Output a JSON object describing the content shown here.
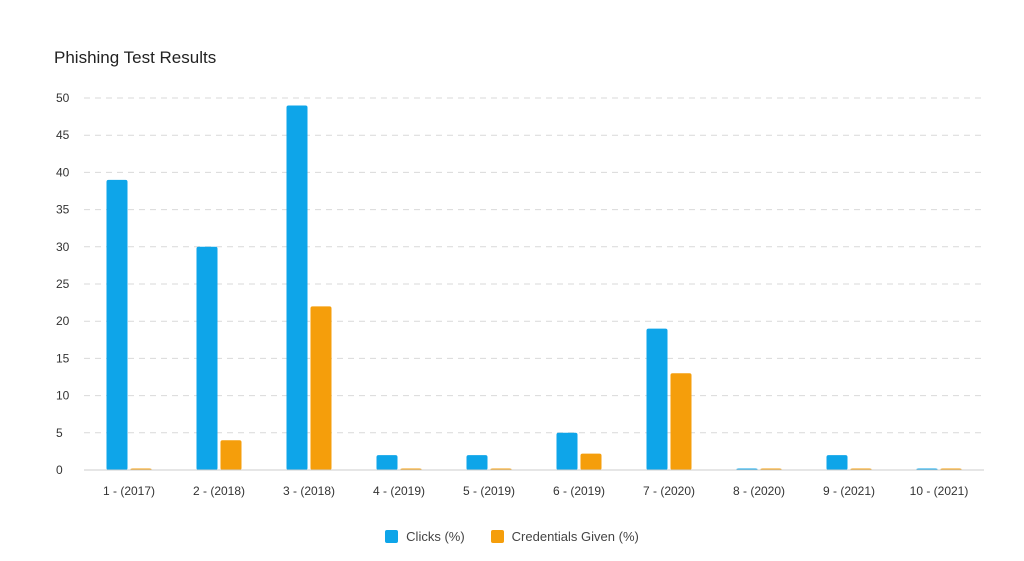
{
  "chart_data": {
    "type": "bar",
    "title": "Phishing Test Results",
    "xlabel": "",
    "ylabel": "",
    "categories": [
      "1 - (2017)",
      "2 - (2018)",
      "3 - (2018)",
      "4 - (2019)",
      "5 - (2019)",
      "6 - (2019)",
      "7 - (2020)",
      "8 - (2020)",
      "9 - (2021)",
      "10 - (2021)"
    ],
    "series": [
      {
        "name": "Clicks (%)",
        "color": "#0ea5e9",
        "values": [
          39,
          30,
          49,
          2,
          2,
          5,
          19,
          0,
          2,
          0
        ]
      },
      {
        "name": "Credentials Given (%)",
        "color": "#f59e0b",
        "values": [
          0,
          4,
          22,
          0,
          0,
          2.2,
          13,
          0,
          0,
          0
        ]
      }
    ],
    "ylim": [
      0,
      50
    ],
    "yticks": [
      0,
      5,
      10,
      15,
      20,
      25,
      30,
      35,
      40,
      45,
      50
    ],
    "grid": true,
    "legend_position": "bottom-center"
  }
}
